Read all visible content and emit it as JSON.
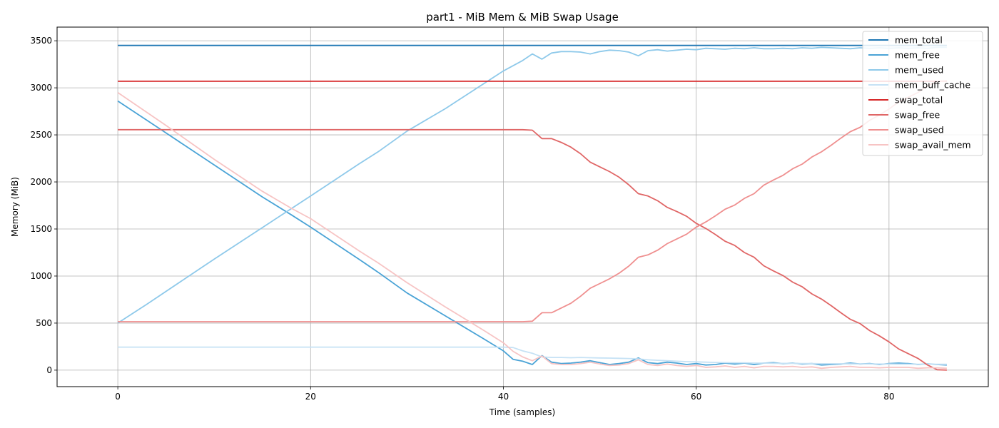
{
  "chart_data": {
    "type": "line",
    "title": "part1 - MiB Mem & MiB Swap Usage",
    "xlabel": "Time (samples)",
    "ylabel": "Memory (MiB)",
    "xlim": [
      -6.3,
      90.3
    ],
    "ylim": [
      -175,
      3645
    ],
    "xticks": [
      0,
      20,
      40,
      60,
      80
    ],
    "yticks": [
      0,
      500,
      1000,
      1500,
      2000,
      2500,
      3000,
      3500
    ],
    "grid": true,
    "legend_position": "top-right",
    "series": [
      {
        "name": "mem_total",
        "color": "#1f77b4",
        "points": [
          [
            0,
            3450
          ],
          [
            86,
            3450
          ]
        ]
      },
      {
        "name": "mem_free",
        "color": "#4aa3d6",
        "points": [
          [
            0,
            2860
          ],
          [
            5,
            2520
          ],
          [
            10,
            2180
          ],
          [
            15,
            1840
          ],
          [
            18,
            1650
          ],
          [
            20,
            1520
          ],
          [
            25,
            1180
          ],
          [
            27,
            1040
          ],
          [
            30,
            820
          ],
          [
            34,
            575
          ],
          [
            38,
            330
          ],
          [
            40,
            205
          ],
          [
            41,
            115
          ],
          [
            42,
            95
          ],
          [
            43,
            60
          ],
          [
            44,
            155
          ],
          [
            45,
            85
          ],
          [
            46,
            70
          ],
          [
            47,
            75
          ],
          [
            48,
            85
          ],
          [
            49,
            100
          ],
          [
            50,
            80
          ],
          [
            51,
            60
          ],
          [
            52,
            70
          ],
          [
            53,
            85
          ],
          [
            54,
            130
          ],
          [
            55,
            80
          ],
          [
            56,
            70
          ],
          [
            57,
            85
          ],
          [
            58,
            75
          ],
          [
            59,
            60
          ],
          [
            60,
            70
          ],
          [
            61,
            55
          ],
          [
            62,
            60
          ],
          [
            63,
            75
          ],
          [
            64,
            65
          ],
          [
            65,
            75
          ],
          [
            66,
            60
          ],
          [
            67,
            75
          ],
          [
            68,
            80
          ],
          [
            69,
            70
          ],
          [
            70,
            75
          ],
          [
            71,
            65
          ],
          [
            72,
            70
          ],
          [
            73,
            55
          ],
          [
            74,
            60
          ],
          [
            75,
            65
          ],
          [
            76,
            75
          ],
          [
            77,
            65
          ],
          [
            78,
            70
          ],
          [
            79,
            60
          ],
          [
            80,
            70
          ],
          [
            81,
            75
          ],
          [
            82,
            70
          ],
          [
            83,
            60
          ],
          [
            84,
            65
          ],
          [
            85,
            60
          ],
          [
            86,
            55
          ]
        ]
      },
      {
        "name": "mem_used",
        "color": "#8ec9ea",
        "points": [
          [
            0,
            500
          ],
          [
            3,
            700
          ],
          [
            10,
            1180
          ],
          [
            20,
            1850
          ],
          [
            25,
            2190
          ],
          [
            27,
            2320
          ],
          [
            30,
            2540
          ],
          [
            34,
            2780
          ],
          [
            40,
            3180
          ],
          [
            42,
            3290
          ],
          [
            43,
            3360
          ],
          [
            44,
            3305
          ],
          [
            45,
            3370
          ],
          [
            46,
            3385
          ],
          [
            47,
            3385
          ],
          [
            48,
            3380
          ],
          [
            49,
            3360
          ],
          [
            50,
            3385
          ],
          [
            51,
            3400
          ],
          [
            52,
            3395
          ],
          [
            53,
            3380
          ],
          [
            54,
            3340
          ],
          [
            55,
            3395
          ],
          [
            56,
            3405
          ],
          [
            57,
            3390
          ],
          [
            58,
            3400
          ],
          [
            59,
            3410
          ],
          [
            60,
            3405
          ],
          [
            61,
            3420
          ],
          [
            62,
            3415
          ],
          [
            63,
            3410
          ],
          [
            64,
            3420
          ],
          [
            65,
            3415
          ],
          [
            66,
            3425
          ],
          [
            67,
            3415
          ],
          [
            68,
            3415
          ],
          [
            69,
            3420
          ],
          [
            70,
            3415
          ],
          [
            71,
            3425
          ],
          [
            72,
            3420
          ],
          [
            73,
            3430
          ],
          [
            74,
            3425
          ],
          [
            75,
            3420
          ],
          [
            76,
            3415
          ],
          [
            77,
            3425
          ],
          [
            78,
            3420
          ],
          [
            79,
            3425
          ],
          [
            80,
            3420
          ],
          [
            81,
            3425
          ],
          [
            82,
            3420
          ],
          [
            83,
            3425
          ],
          [
            84,
            3420
          ],
          [
            85,
            3430
          ],
          [
            86,
            3430
          ]
        ]
      },
      {
        "name": "mem_buff_cache",
        "color": "#c6e2f5",
        "points": [
          [
            0,
            245
          ],
          [
            40,
            245
          ],
          [
            41,
            240
          ],
          [
            42,
            205
          ],
          [
            43,
            180
          ],
          [
            44,
            140
          ],
          [
            45,
            135
          ],
          [
            46,
            135
          ],
          [
            47,
            132
          ],
          [
            48,
            135
          ],
          [
            49,
            132
          ],
          [
            50,
            130
          ],
          [
            51,
            128
          ],
          [
            52,
            126
          ],
          [
            53,
            124
          ],
          [
            54,
            120
          ],
          [
            55,
            110
          ],
          [
            56,
            105
          ],
          [
            57,
            100
          ],
          [
            58,
            95
          ],
          [
            59,
            90
          ],
          [
            60,
            88
          ],
          [
            61,
            85
          ],
          [
            62,
            82
          ],
          [
            63,
            80
          ],
          [
            64,
            78
          ],
          [
            65,
            78
          ],
          [
            66,
            75
          ],
          [
            67,
            75
          ],
          [
            68,
            73
          ],
          [
            69,
            72
          ],
          [
            70,
            72
          ],
          [
            71,
            70
          ],
          [
            72,
            70
          ],
          [
            73,
            68
          ],
          [
            74,
            68
          ],
          [
            75,
            68
          ],
          [
            76,
            66
          ],
          [
            77,
            66
          ],
          [
            78,
            66
          ],
          [
            79,
            65
          ],
          [
            80,
            65
          ],
          [
            81,
            64
          ],
          [
            82,
            64
          ],
          [
            83,
            63
          ],
          [
            84,
            63
          ],
          [
            85,
            62
          ],
          [
            86,
            62
          ]
        ]
      },
      {
        "name": "swap_total",
        "color": "#d62728",
        "points": [
          [
            0,
            3070
          ],
          [
            86,
            3070
          ]
        ]
      },
      {
        "name": "swap_free",
        "color": "#e06666",
        "points": [
          [
            0,
            2555
          ],
          [
            42,
            2555
          ],
          [
            43,
            2550
          ],
          [
            44,
            2460
          ],
          [
            45,
            2460
          ],
          [
            46,
            2420
          ],
          [
            47,
            2370
          ],
          [
            48,
            2300
          ],
          [
            49,
            2210
          ],
          [
            50,
            2160
          ],
          [
            51,
            2110
          ],
          [
            52,
            2050
          ],
          [
            53,
            1970
          ],
          [
            54,
            1875
          ],
          [
            55,
            1850
          ],
          [
            56,
            1800
          ],
          [
            57,
            1730
          ],
          [
            58,
            1685
          ],
          [
            59,
            1635
          ],
          [
            60,
            1560
          ],
          [
            61,
            1505
          ],
          [
            62,
            1440
          ],
          [
            63,
            1370
          ],
          [
            64,
            1325
          ],
          [
            65,
            1250
          ],
          [
            66,
            1200
          ],
          [
            67,
            1110
          ],
          [
            68,
            1055
          ],
          [
            69,
            1005
          ],
          [
            70,
            935
          ],
          [
            71,
            885
          ],
          [
            72,
            810
          ],
          [
            73,
            755
          ],
          [
            74,
            685
          ],
          [
            75,
            610
          ],
          [
            76,
            540
          ],
          [
            77,
            495
          ],
          [
            78,
            420
          ],
          [
            79,
            365
          ],
          [
            80,
            300
          ],
          [
            81,
            225
          ],
          [
            82,
            175
          ],
          [
            83,
            125
          ],
          [
            84,
            55
          ],
          [
            85,
            5
          ],
          [
            86,
            0
          ]
        ]
      },
      {
        "name": "swap_used",
        "color": "#ef8f8f",
        "points": [
          [
            0,
            515
          ],
          [
            42,
            515
          ],
          [
            43,
            520
          ],
          [
            44,
            610
          ],
          [
            45,
            610
          ],
          [
            46,
            660
          ],
          [
            47,
            710
          ],
          [
            48,
            785
          ],
          [
            49,
            870
          ],
          [
            50,
            920
          ],
          [
            51,
            970
          ],
          [
            52,
            1030
          ],
          [
            53,
            1105
          ],
          [
            54,
            1200
          ],
          [
            55,
            1225
          ],
          [
            56,
            1275
          ],
          [
            57,
            1345
          ],
          [
            58,
            1395
          ],
          [
            59,
            1445
          ],
          [
            60,
            1520
          ],
          [
            61,
            1575
          ],
          [
            62,
            1640
          ],
          [
            63,
            1710
          ],
          [
            64,
            1755
          ],
          [
            65,
            1825
          ],
          [
            66,
            1875
          ],
          [
            67,
            1965
          ],
          [
            68,
            2020
          ],
          [
            69,
            2070
          ],
          [
            70,
            2140
          ],
          [
            71,
            2190
          ],
          [
            72,
            2265
          ],
          [
            73,
            2320
          ],
          [
            74,
            2390
          ],
          [
            75,
            2465
          ],
          [
            76,
            2535
          ],
          [
            77,
            2580
          ],
          [
            78,
            2655
          ],
          [
            79,
            2710
          ],
          [
            80,
            2775
          ],
          [
            81,
            2850
          ],
          [
            82,
            2900
          ],
          [
            83,
            2950
          ],
          [
            84,
            3020
          ],
          [
            85,
            3070
          ],
          [
            86,
            3075
          ]
        ]
      },
      {
        "name": "swap_avail_mem",
        "color": "#f7c4c4",
        "points": [
          [
            0,
            2950
          ],
          [
            5,
            2600
          ],
          [
            10,
            2240
          ],
          [
            15,
            1900
          ],
          [
            18,
            1720
          ],
          [
            20,
            1610
          ],
          [
            25,
            1270
          ],
          [
            27,
            1140
          ],
          [
            30,
            930
          ],
          [
            34,
            670
          ],
          [
            38,
            420
          ],
          [
            40,
            290
          ],
          [
            41,
            200
          ],
          [
            42,
            140
          ],
          [
            43,
            100
          ],
          [
            44,
            150
          ],
          [
            45,
            70
          ],
          [
            46,
            60
          ],
          [
            47,
            60
          ],
          [
            48,
            70
          ],
          [
            49,
            85
          ],
          [
            50,
            65
          ],
          [
            51,
            50
          ],
          [
            52,
            55
          ],
          [
            53,
            70
          ],
          [
            54,
            110
          ],
          [
            55,
            60
          ],
          [
            56,
            50
          ],
          [
            57,
            65
          ],
          [
            58,
            50
          ],
          [
            59,
            40
          ],
          [
            60,
            50
          ],
          [
            61,
            30
          ],
          [
            62,
            35
          ],
          [
            63,
            45
          ],
          [
            64,
            30
          ],
          [
            65,
            40
          ],
          [
            66,
            25
          ],
          [
            67,
            40
          ],
          [
            68,
            40
          ],
          [
            69,
            35
          ],
          [
            70,
            40
          ],
          [
            71,
            30
          ],
          [
            72,
            35
          ],
          [
            73,
            20
          ],
          [
            74,
            30
          ],
          [
            75,
            35
          ],
          [
            76,
            40
          ],
          [
            77,
            30
          ],
          [
            78,
            30
          ],
          [
            79,
            25
          ],
          [
            80,
            30
          ],
          [
            81,
            30
          ],
          [
            82,
            30
          ],
          [
            83,
            20
          ],
          [
            84,
            25
          ],
          [
            85,
            25
          ],
          [
            86,
            20
          ]
        ]
      }
    ]
  }
}
